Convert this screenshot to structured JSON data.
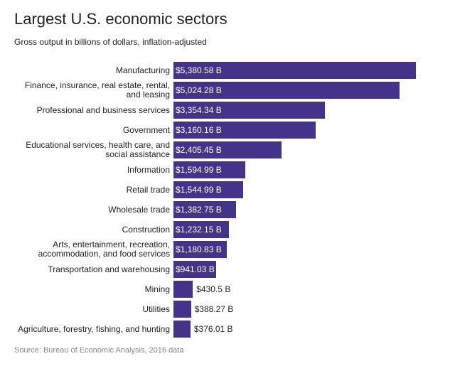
{
  "chart_data": {
    "type": "bar",
    "orientation": "horizontal",
    "title": "Largest U.S. economic sectors",
    "subtitle": "Gross output in billions of dollars, inflation-adjusted",
    "source": "Source: Bureau of Economic Analysis, 2016 data",
    "color": "#43348a",
    "categories": [
      "Manufacturing",
      "Finance, insurance, real estate, rental, and leasing",
      "Professional and business services",
      "Government",
      "Educational services, health care, and social assistance",
      "Information",
      "Retail trade",
      "Wholesale trade",
      "Construction",
      "Arts, entertainment, recreation, accommodation, and food services",
      "Transportation and warehousing",
      "Mining",
      "Utilities",
      "Agriculture, forestry, fishing, and hunting"
    ],
    "values": [
      5380.58,
      5024.28,
      3354.34,
      3160.16,
      2405.45,
      1594.99,
      1544.99,
      1382.75,
      1232.15,
      1180.83,
      941.03,
      430.5,
      388.27,
      376.01
    ],
    "value_labels": [
      "$5,380.58 B",
      "$5,024.28 B",
      "$3,354.34 B",
      "$3,160.16 B",
      "$2,405.45 B",
      "$1,594.99 B",
      "$1,544.99 B",
      "$1,382.75 B",
      "$1,232.15 B",
      "$1,180.83 B",
      "$941.03 B",
      "$430.5 B",
      "$388.27 B",
      "$376.01 B"
    ]
  }
}
